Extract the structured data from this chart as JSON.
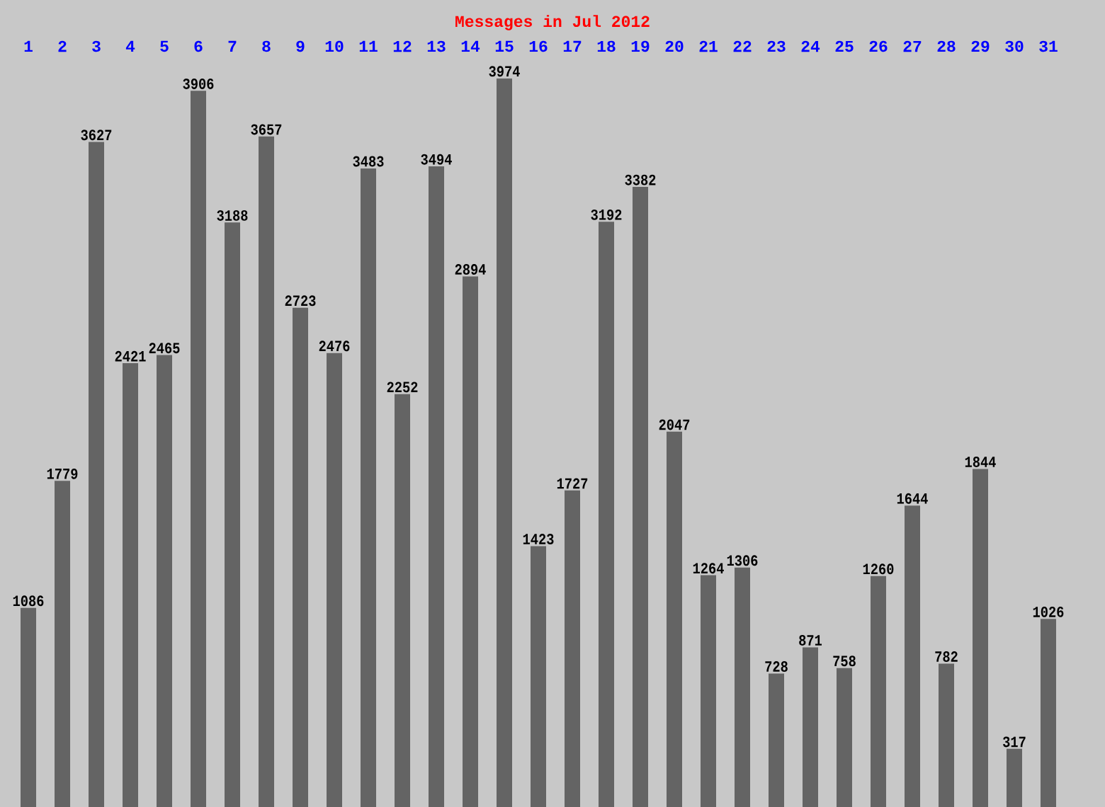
{
  "chart_data": {
    "type": "bar",
    "title": "Messages in Jul 2012",
    "categories": [
      "1",
      "2",
      "3",
      "4",
      "5",
      "6",
      "7",
      "8",
      "9",
      "10",
      "11",
      "12",
      "13",
      "14",
      "15",
      "16",
      "17",
      "18",
      "19",
      "20",
      "21",
      "22",
      "23",
      "24",
      "25",
      "26",
      "27",
      "28",
      "29",
      "30",
      "31"
    ],
    "values": [
      1086,
      1779,
      3627,
      2421,
      2465,
      3906,
      3188,
      3657,
      2723,
      2476,
      3483,
      2252,
      3494,
      2894,
      3974,
      1423,
      1727,
      3192,
      3382,
      2047,
      1264,
      1306,
      728,
      871,
      758,
      1260,
      1644,
      782,
      1844,
      317,
      1026
    ],
    "color": "#646464",
    "ylim": [
      0,
      4000
    ],
    "data_labels": true,
    "tick_labels": "x"
  }
}
